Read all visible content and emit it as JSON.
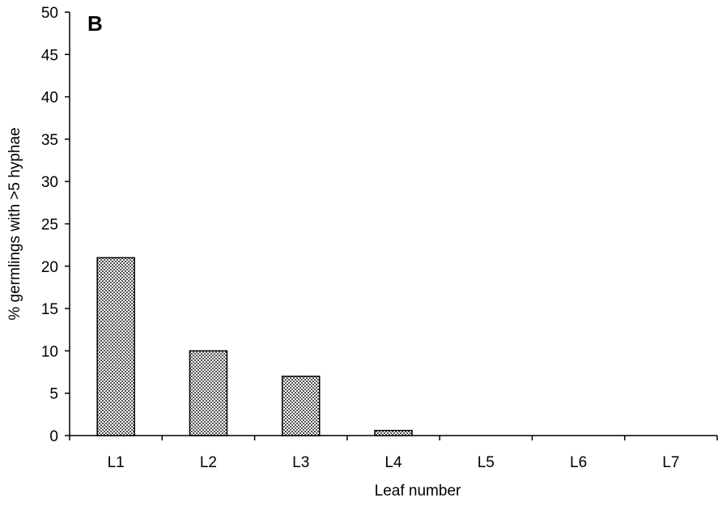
{
  "chart_data": {
    "type": "bar",
    "panel_label": "B",
    "categories": [
      "L1",
      "L2",
      "L3",
      "L4",
      "L5",
      "L6",
      "L7"
    ],
    "values": [
      21,
      10,
      7,
      0.6,
      0,
      0,
      0
    ],
    "xlabel": "Leaf number",
    "ylabel": "% germlings with >5 hyphae",
    "ylim": [
      0,
      50
    ],
    "yticks": [
      0,
      5,
      10,
      15,
      20,
      25,
      30,
      35,
      40,
      45,
      50
    ],
    "grid": false,
    "legend": "none",
    "bar_color": "#b0b0b0"
  }
}
